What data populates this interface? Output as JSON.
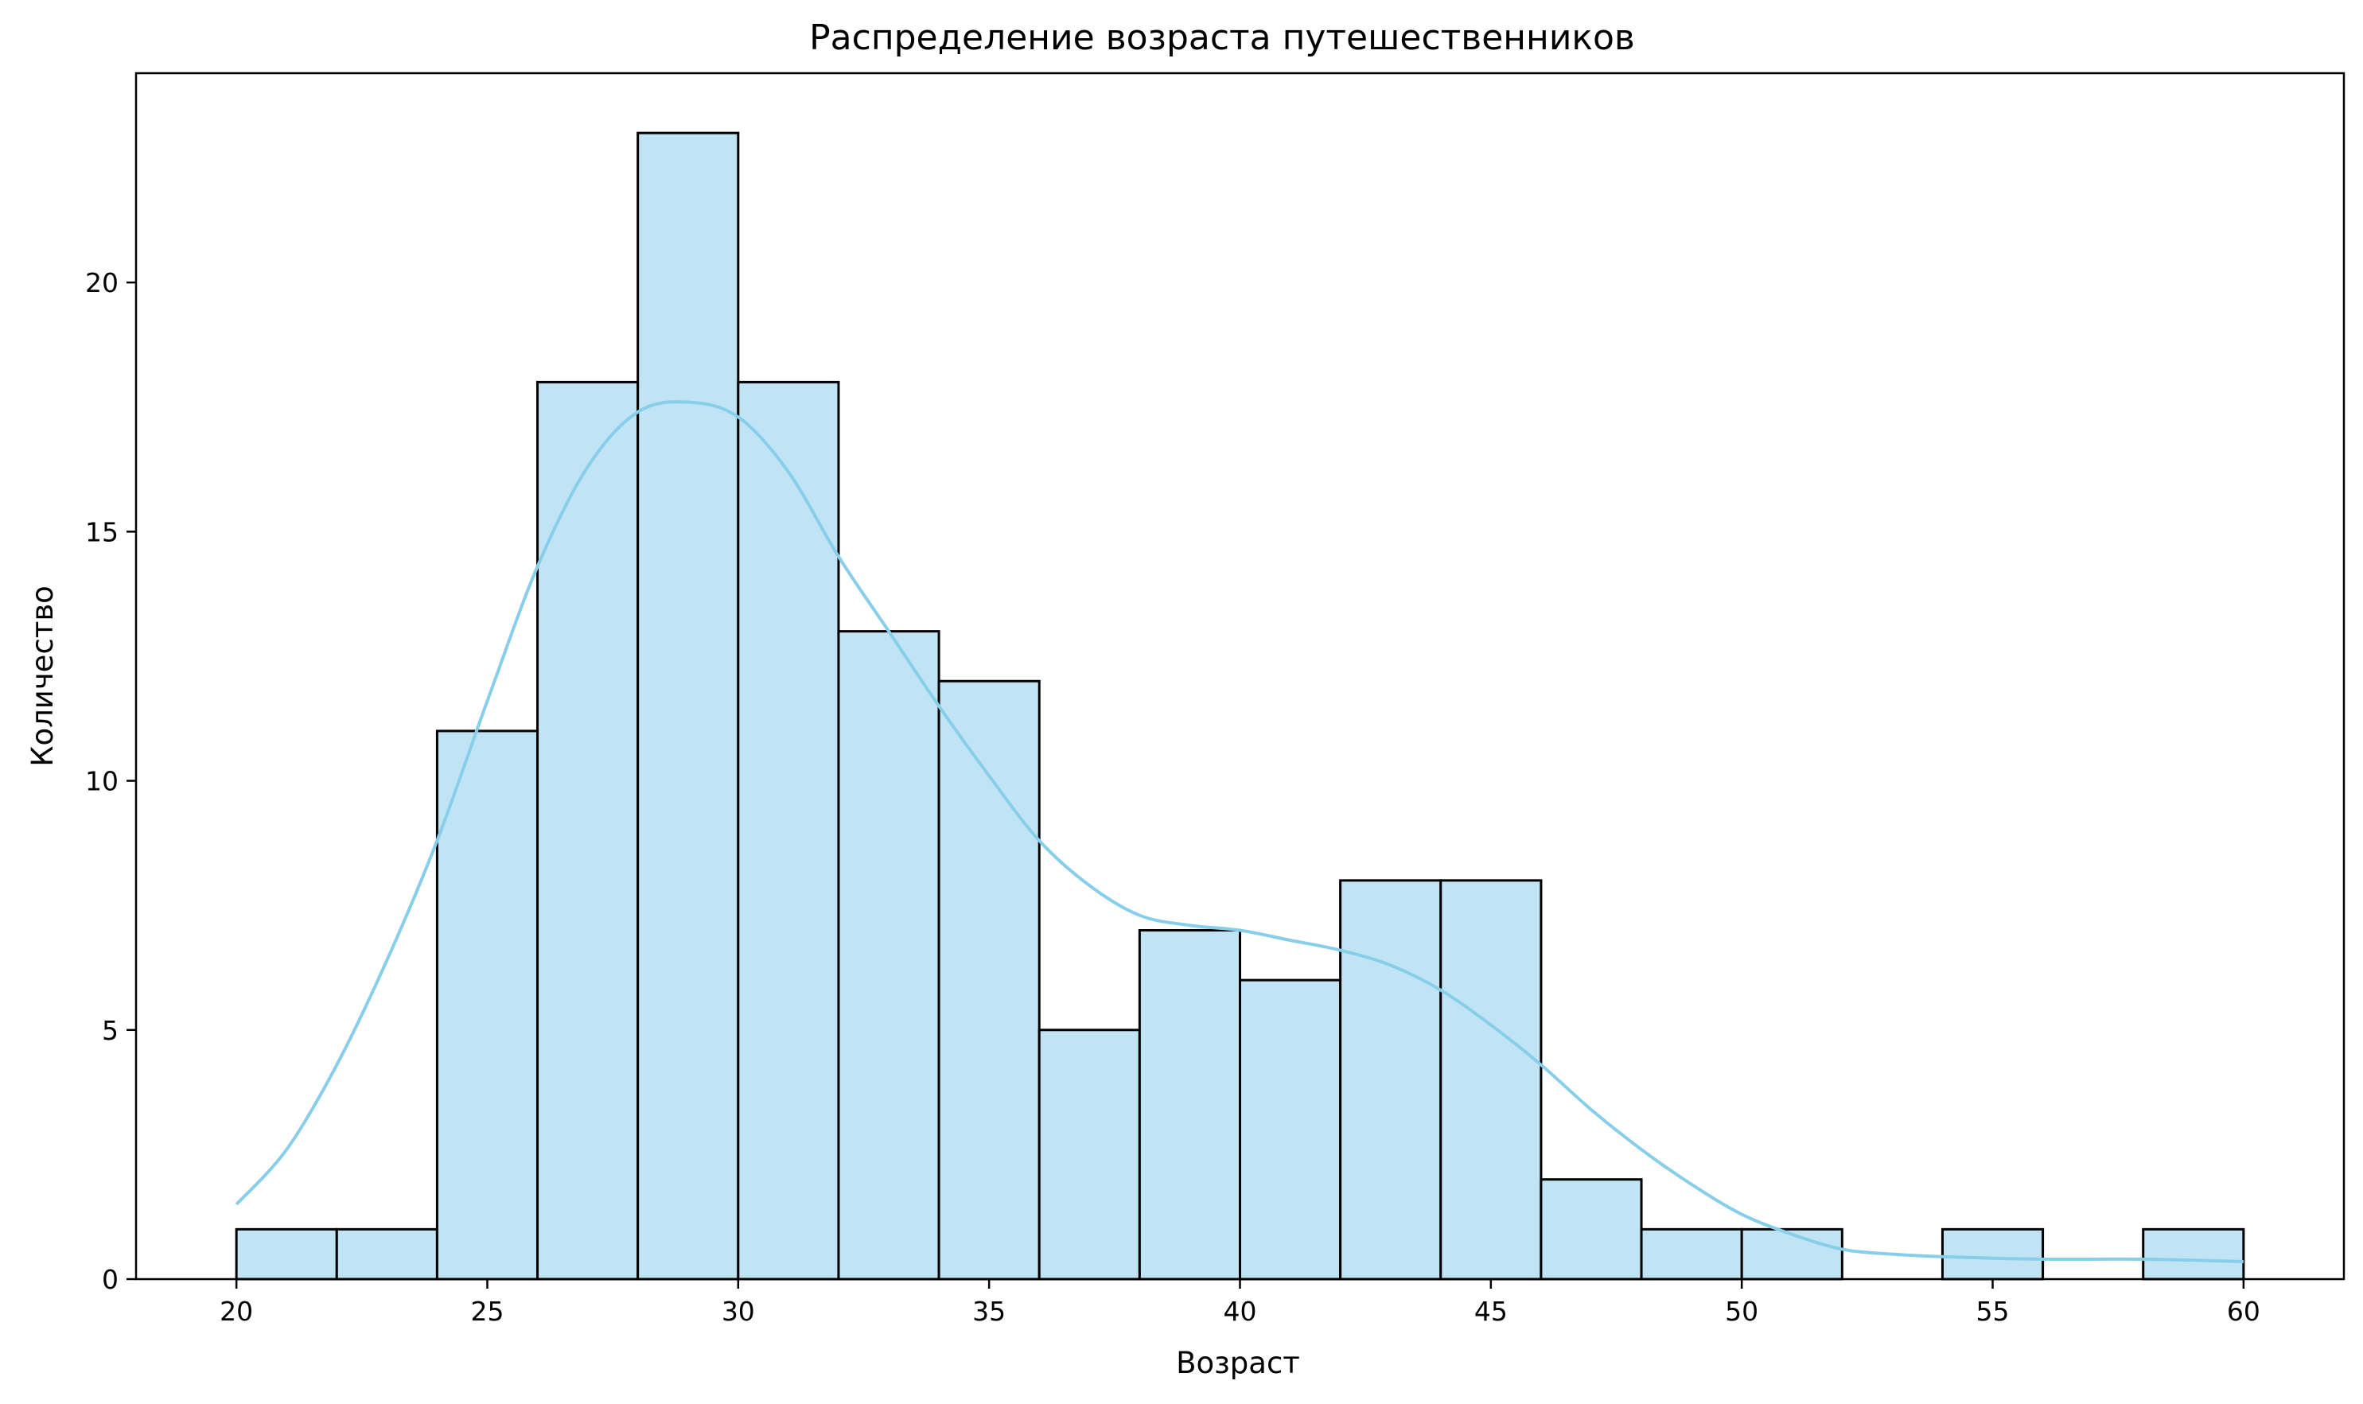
{
  "chart_data": {
    "type": "bar",
    "title": "Распределение возраста путешественников",
    "xlabel": "Возраст",
    "ylabel": "Количество",
    "xlim": [
      18,
      62
    ],
    "ylim": [
      0,
      24.2
    ],
    "xticks": [
      20,
      25,
      30,
      35,
      40,
      45,
      50,
      55,
      60
    ],
    "yticks": [
      0,
      5,
      10,
      15,
      20
    ],
    "grid": false,
    "bar_color": "#c1e4f4",
    "edge_color": "#000000",
    "kde_color": "#87ceeb",
    "bins": [
      {
        "x0": 20,
        "x1": 22,
        "count": 1
      },
      {
        "x0": 22,
        "x1": 24,
        "count": 1
      },
      {
        "x0": 24,
        "x1": 26,
        "count": 11
      },
      {
        "x0": 26,
        "x1": 28,
        "count": 18
      },
      {
        "x0": 28,
        "x1": 30,
        "count": 23
      },
      {
        "x0": 30,
        "x1": 32,
        "count": 18
      },
      {
        "x0": 32,
        "x1": 34,
        "count": 13
      },
      {
        "x0": 34,
        "x1": 36,
        "count": 12
      },
      {
        "x0": 36,
        "x1": 38,
        "count": 5
      },
      {
        "x0": 38,
        "x1": 40,
        "count": 7
      },
      {
        "x0": 40,
        "x1": 42,
        "count": 6
      },
      {
        "x0": 42,
        "x1": 44,
        "count": 8
      },
      {
        "x0": 44,
        "x1": 46,
        "count": 8
      },
      {
        "x0": 46,
        "x1": 48,
        "count": 2
      },
      {
        "x0": 48,
        "x1": 50,
        "count": 1
      },
      {
        "x0": 50,
        "x1": 52,
        "count": 1
      },
      {
        "x0": 52,
        "x1": 54,
        "count": 0
      },
      {
        "x0": 54,
        "x1": 56,
        "count": 1
      },
      {
        "x0": 56,
        "x1": 58,
        "count": 0
      },
      {
        "x0": 58,
        "x1": 60,
        "count": 1
      }
    ],
    "kde": {
      "x": [
        20,
        21,
        22,
        23,
        24,
        25,
        26,
        27,
        28,
        29,
        30,
        31,
        32,
        33,
        34,
        35,
        36,
        37,
        38,
        39,
        40,
        41,
        42,
        43,
        44,
        45,
        46,
        47,
        48,
        49,
        50,
        51,
        52,
        53,
        54,
        55,
        56,
        57,
        58,
        59,
        60
      ],
      "y": [
        1.5,
        2.6,
        4.3,
        6.4,
        8.8,
        11.6,
        14.3,
        16.3,
        17.4,
        17.6,
        17.3,
        16.2,
        14.5,
        13.0,
        11.5,
        10.1,
        8.8,
        7.9,
        7.3,
        7.1,
        7.0,
        6.8,
        6.6,
        6.3,
        5.8,
        5.1,
        4.3,
        3.4,
        2.6,
        1.9,
        1.3,
        0.9,
        0.6,
        0.5,
        0.45,
        0.42,
        0.4,
        0.4,
        0.4,
        0.38,
        0.35
      ]
    }
  }
}
